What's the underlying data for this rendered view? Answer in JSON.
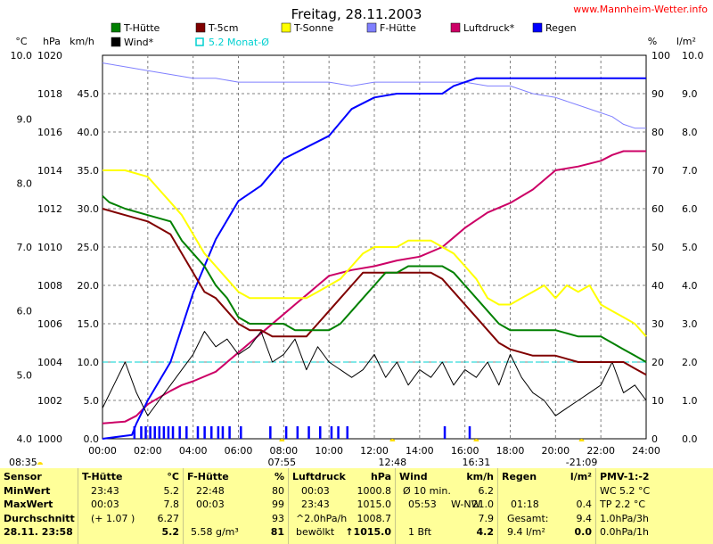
{
  "site_label": "www.Mannheim-Wetter.info",
  "chart_data": {
    "type": "line",
    "title": "Freitag, 28.11.2003",
    "x_ticks": [
      "00:00",
      "02:00",
      "04:00",
      "06:00",
      "08:00",
      "10:00",
      "12:00",
      "14:00",
      "16:00",
      "18:00",
      "20:00",
      "22:00",
      "24:00"
    ],
    "axes": {
      "celsius": {
        "label": "°C",
        "min": 4.0,
        "max": 10.0,
        "ticks": [
          "4.0",
          "5.0",
          "6.0",
          "7.0",
          "8.0",
          "9.0",
          "10.0"
        ]
      },
      "hpa": {
        "label": "hPa",
        "min": 1000,
        "max": 1020,
        "ticks": [
          "1000",
          "1002",
          "1004",
          "1006",
          "1008",
          "1010",
          "1012",
          "1014",
          "1016",
          "1018",
          "1020"
        ]
      },
      "kmh": {
        "label": "km/h",
        "min": 0,
        "max": 50,
        "ticks": [
          "0.0",
          "5.0",
          "10.0",
          "15.0",
          "20.0",
          "25.0",
          "30.0",
          "35.0",
          "40.0",
          "45.0"
        ]
      },
      "percent": {
        "label": "%",
        "min": 0,
        "max": 100,
        "ticks": [
          "0",
          "10",
          "20",
          "30",
          "40",
          "50",
          "60",
          "70",
          "80",
          "90",
          "100"
        ]
      },
      "rain": {
        "label": "l/m²",
        "min": 0,
        "max": 10,
        "ticks": [
          "0.0",
          "1.0",
          "2.0",
          "3.0",
          "4.0",
          "5.0",
          "6.0",
          "7.0",
          "8.0",
          "9.0",
          "10.0"
        ]
      }
    },
    "legend": [
      {
        "name": "T-Hütte",
        "color": "#008000"
      },
      {
        "name": "T-5cm",
        "color": "#800000"
      },
      {
        "name": "T-Sonne",
        "color": "#ffff00"
      },
      {
        "name": "F-Hütte",
        "color": "#8080ff"
      },
      {
        "name": "Luftdruck*",
        "color": "#cc0066"
      },
      {
        "name": "Regen",
        "color": "#0000ff"
      },
      {
        "name": "Wind*",
        "color": "#000000"
      },
      {
        "name": "5.2 Monat-Ø",
        "color": "#00d0d0"
      }
    ],
    "monthly_mean_celsius": 5.2,
    "series": [
      {
        "name": "T-Hütte",
        "axis": "celsius",
        "color": "#008000",
        "x": [
          0,
          0.3,
          1,
          2,
          3,
          3.5,
          4,
          4.5,
          5,
          5.5,
          6,
          6.5,
          7,
          7.5,
          8,
          8.5,
          9,
          9.5,
          10,
          10.5,
          11,
          11.5,
          12,
          12.5,
          13,
          13.5,
          14,
          14.5,
          15,
          15.5,
          16,
          16.5,
          17,
          17.5,
          18,
          19,
          20,
          21,
          22,
          22.5,
          23,
          23.5,
          24
        ],
        "y": [
          7.8,
          7.7,
          7.6,
          7.5,
          7.4,
          7.1,
          6.9,
          6.7,
          6.4,
          6.2,
          5.9,
          5.8,
          5.8,
          5.8,
          5.8,
          5.7,
          5.7,
          5.7,
          5.7,
          5.8,
          6.0,
          6.2,
          6.4,
          6.6,
          6.6,
          6.7,
          6.7,
          6.7,
          6.7,
          6.6,
          6.4,
          6.2,
          6.0,
          5.8,
          5.7,
          5.7,
          5.7,
          5.6,
          5.6,
          5.5,
          5.4,
          5.3,
          5.2
        ]
      },
      {
        "name": "T-5cm",
        "axis": "celsius",
        "color": "#800000",
        "x": [
          0,
          1,
          2,
          3,
          3.5,
          4,
          4.5,
          5,
          5.5,
          6,
          6.5,
          7,
          7.5,
          8,
          8.5,
          9,
          9.5,
          10,
          10.5,
          11,
          11.5,
          12,
          13,
          14,
          14.5,
          15,
          15.5,
          16,
          16.5,
          17,
          17.5,
          18,
          19,
          20,
          21,
          22,
          22.5,
          23,
          23.5,
          24
        ],
        "y": [
          7.6,
          7.5,
          7.4,
          7.2,
          6.9,
          6.6,
          6.3,
          6.2,
          6.0,
          5.8,
          5.7,
          5.7,
          5.6,
          5.6,
          5.6,
          5.6,
          5.8,
          6.0,
          6.2,
          6.4,
          6.6,
          6.6,
          6.6,
          6.6,
          6.6,
          6.5,
          6.3,
          6.1,
          5.9,
          5.7,
          5.5,
          5.4,
          5.3,
          5.3,
          5.2,
          5.2,
          5.2,
          5.2,
          5.1,
          5.0
        ]
      },
      {
        "name": "T-Sonne",
        "axis": "celsius",
        "color": "#ffff00",
        "x": [
          0,
          1,
          2,
          2.5,
          3,
          3.5,
          4,
          4.5,
          5,
          5.5,
          6,
          6.5,
          7,
          7.5,
          8,
          8.5,
          9,
          9.5,
          10,
          10.5,
          11,
          11.5,
          12,
          12.5,
          13,
          13.5,
          14,
          14.5,
          15,
          15.5,
          16,
          16.5,
          17,
          17.5,
          18,
          18.5,
          19,
          19.5,
          20,
          20.5,
          21,
          21.5,
          22,
          22.5,
          23,
          23.5,
          24
        ],
        "y": [
          8.2,
          8.2,
          8.1,
          7.9,
          7.7,
          7.5,
          7.2,
          6.9,
          6.7,
          6.5,
          6.3,
          6.2,
          6.2,
          6.2,
          6.2,
          6.2,
          6.2,
          6.3,
          6.4,
          6.5,
          6.7,
          6.9,
          7.0,
          7.0,
          7.0,
          7.1,
          7.1,
          7.1,
          7.0,
          6.9,
          6.7,
          6.5,
          6.2,
          6.1,
          6.1,
          6.2,
          6.3,
          6.4,
          6.2,
          6.4,
          6.3,
          6.4,
          6.1,
          6.0,
          5.9,
          5.8,
          5.6
        ]
      },
      {
        "name": "F-Hütte",
        "axis": "percent",
        "color": "#8080ff",
        "x": [
          0,
          1,
          2,
          3,
          4,
          5,
          6,
          7,
          8,
          9,
          10,
          11,
          12,
          13,
          14,
          15,
          16,
          17,
          18,
          19,
          20,
          21,
          22,
          22.5,
          23,
          23.5,
          24
        ],
        "y": [
          98,
          97,
          96,
          95,
          94,
          94,
          93,
          93,
          93,
          93,
          93,
          92,
          93,
          93,
          93,
          93,
          93,
          92,
          92,
          90,
          89,
          87,
          85,
          84,
          82,
          81,
          81
        ]
      },
      {
        "name": "Luftdruck*",
        "axis": "hpa",
        "color": "#cc0066",
        "x": [
          0,
          1,
          1.5,
          2,
          3,
          3.5,
          4,
          5,
          6,
          7,
          8,
          8.5,
          9,
          9.5,
          10,
          11,
          12,
          13,
          14,
          15,
          15.5,
          16,
          17,
          18,
          19,
          20,
          21,
          22,
          22.5,
          23,
          24
        ],
        "y": [
          1000.8,
          1000.9,
          1001.2,
          1001.8,
          1002.5,
          1002.8,
          1003.0,
          1003.5,
          1004.5,
          1005.5,
          1006.5,
          1007.0,
          1007.5,
          1008.0,
          1008.5,
          1008.8,
          1009.0,
          1009.3,
          1009.5,
          1010.0,
          1010.5,
          1011.0,
          1011.8,
          1012.3,
          1013.0,
          1014.0,
          1014.2,
          1014.5,
          1014.8,
          1015.0,
          1015.0
        ]
      },
      {
        "name": "Regen",
        "axis": "rain",
        "color": "#0000ff",
        "x": [
          0,
          1.3,
          1.5,
          2,
          3,
          4,
          5,
          6,
          7,
          8,
          9,
          10,
          11,
          12,
          13,
          14,
          15,
          15.5,
          16,
          16.5,
          17,
          18,
          20,
          22,
          24
        ],
        "y": [
          0,
          0.1,
          0.4,
          1.0,
          2.0,
          3.8,
          5.2,
          6.2,
          6.6,
          7.3,
          7.6,
          7.9,
          8.6,
          8.9,
          9.0,
          9.0,
          9.0,
          9.2,
          9.3,
          9.4,
          9.4,
          9.4,
          9.4,
          9.4,
          9.4
        ]
      },
      {
        "name": "Wind*",
        "axis": "kmh",
        "color": "#000000",
        "x": [
          0,
          0.5,
          1,
          1.5,
          2,
          2.5,
          3,
          3.5,
          4,
          4.5,
          5,
          5.5,
          6,
          6.5,
          7,
          7.5,
          8,
          8.5,
          9,
          9.5,
          10,
          10.5,
          11,
          11.5,
          12,
          12.5,
          13,
          13.5,
          14,
          14.5,
          15,
          15.5,
          16,
          16.5,
          17,
          17.5,
          18,
          18.5,
          19,
          19.5,
          20,
          20.5,
          21,
          21.5,
          22,
          22.5,
          23,
          23.5,
          24
        ],
        "y": [
          4,
          7,
          10,
          6,
          3,
          5,
          7,
          9,
          11,
          14,
          12,
          13,
          11,
          12,
          14,
          10,
          11,
          13,
          9,
          12,
          10,
          9,
          8,
          9,
          11,
          8,
          10,
          7,
          9,
          8,
          10,
          7,
          9,
          8,
          10,
          7,
          11,
          8,
          6,
          5,
          3,
          4,
          5,
          6,
          7,
          10,
          6,
          7,
          5
        ]
      }
    ],
    "rain_events": [
      1.4,
      1.7,
      1.9,
      2.1,
      2.3,
      2.5,
      2.7,
      2.9,
      3.1,
      3.4,
      3.7,
      4.2,
      4.5,
      4.8,
      5.1,
      5.3,
      5.6,
      6.1,
      7.4,
      8.1,
      8.6,
      9.1,
      9.6,
      10.1,
      10.4,
      10.8,
      15.1,
      16.2
    ],
    "time_markers": [
      {
        "label": "08:35",
        "hour": 0,
        "row": "under-left"
      },
      {
        "label": "07:55",
        "hour": 7.92,
        "row": "under"
      },
      {
        "label": "12:48",
        "hour": 12.8,
        "row": "under"
      },
      {
        "label": "16:31",
        "hour": 16.5,
        "row": "under"
      },
      {
        "label": "-21:09",
        "hour": 21.15,
        "row": "under"
      }
    ]
  },
  "panel": {
    "sensor": {
      "title": "Sensor",
      "rows": [
        "MinWert",
        "MaxWert",
        "Durchschnitt"
      ],
      "date": "28.11. 23:58"
    },
    "t_huette": {
      "title": "T-Hütte",
      "unit": "°C",
      "rows": [
        {
          "a": "23:43",
          "b": "5.2"
        },
        {
          "a": "00:03",
          "b": "7.8"
        },
        {
          "a": "(+ 1.07 )",
          "b": "6.27"
        }
      ],
      "current": "5.2"
    },
    "f_huette": {
      "title": "F-Hütte",
      "unit": "%",
      "rows": [
        {
          "a": "22:48",
          "b": "80"
        },
        {
          "a": "00:03",
          "b": "99"
        },
        {
          "a": "",
          "b": "93"
        }
      ],
      "current_a": "5.58 g/m³",
      "current": "81"
    },
    "luftdruck": {
      "title": "Luftdruck",
      "unit": "hPa",
      "rows": [
        {
          "a": "00:03",
          "b": "1000.8"
        },
        {
          "a": "23:43",
          "b": "1015.0"
        },
        {
          "a": "^2.0hPa/h",
          "b": "1008.7"
        }
      ],
      "current_a": "bewölkt",
      "current": "↑1015.0"
    },
    "wind": {
      "title": "Wind",
      "unit": "km/h",
      "rows": [
        {
          "a": "Ø 10 min.",
          "m": "",
          "b": "6.2"
        },
        {
          "a": "05:53",
          "m": "W-NW",
          "b": "21.0"
        },
        {
          "a": "",
          "m": "",
          "b": "7.9"
        }
      ],
      "current_a": "1 Bft",
      "current": "4.2"
    },
    "regen": {
      "title": "Regen",
      "unit": "l/m²",
      "rows": [
        {
          "a": "",
          "b": ""
        },
        {
          "a": "01:18",
          "b": "0.4"
        },
        {
          "a": "Gesamt:",
          "b": "9.4"
        }
      ],
      "current_a": "9.4 l/m²",
      "current": "0.0"
    },
    "pmv": {
      "title": "PMV-1:-2",
      "rows": [
        "WC 5.2 °C",
        "TP 2.2 °C",
        "1.0hPa/3h"
      ],
      "current": "0.0hPa/1h"
    }
  }
}
